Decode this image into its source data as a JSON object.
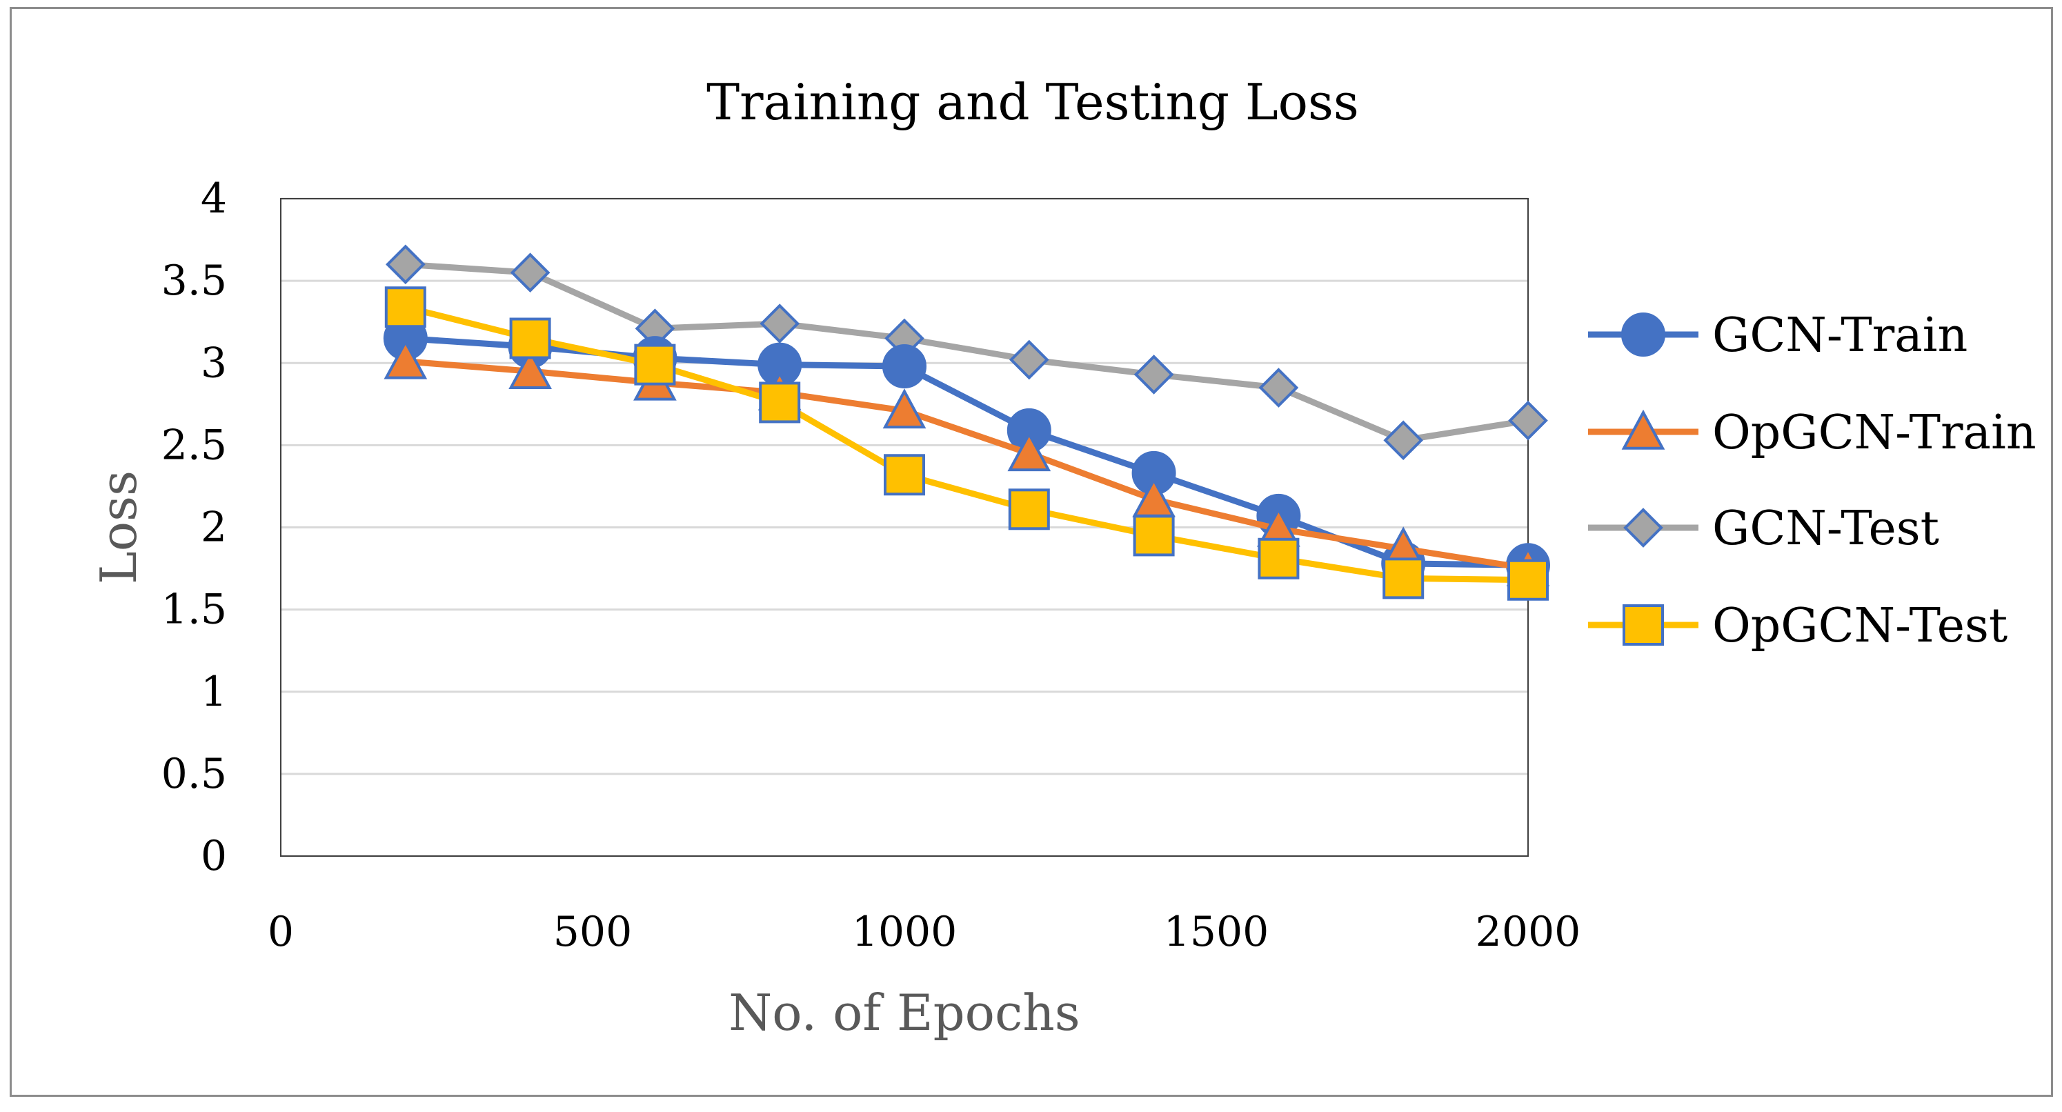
{
  "chart_data": {
    "type": "line",
    "title": "Training and Testing Loss",
    "xlabel": "No. of Epochs",
    "ylabel": "Loss",
    "xlim": [
      0,
      2000
    ],
    "ylim": [
      0,
      4
    ],
    "x_ticks": [
      0,
      500,
      1000,
      1500,
      2000
    ],
    "x_tick_labels": [
      "0",
      "500",
      "1000",
      "1500",
      "2000"
    ],
    "y_ticks": [
      0,
      0.5,
      1,
      1.5,
      2,
      2.5,
      3,
      3.5,
      4
    ],
    "y_tick_labels": [
      "0",
      "0.5",
      "1",
      "1.5",
      "2",
      "2.5",
      "3",
      "3.5",
      "4"
    ],
    "grid": "horizontal",
    "legend_position": "right",
    "x": [
      200,
      400,
      600,
      800,
      1000,
      1200,
      1400,
      1600,
      1800,
      2000
    ],
    "series": [
      {
        "name": "GCN-Train",
        "color": "#4472c4",
        "marker": "circle",
        "values": [
          3.15,
          3.1,
          3.03,
          2.99,
          2.98,
          2.59,
          2.33,
          2.07,
          1.78,
          1.77
        ]
      },
      {
        "name": "OpGCN-Train",
        "color": "#ed7d31",
        "marker": "triangle",
        "values": [
          3.01,
          2.95,
          2.88,
          2.82,
          2.71,
          2.45,
          2.17,
          1.99,
          1.87,
          1.75
        ]
      },
      {
        "name": "GCN-Test",
        "color": "#a5a5a5",
        "marker": "diamond",
        "values": [
          3.6,
          3.55,
          3.21,
          3.24,
          3.15,
          3.02,
          2.93,
          2.85,
          2.53,
          2.65
        ]
      },
      {
        "name": "OpGCN-Test",
        "color": "#ffc000",
        "marker": "square",
        "values": [
          3.34,
          3.15,
          2.99,
          2.76,
          2.32,
          2.11,
          1.95,
          1.81,
          1.69,
          1.68
        ]
      }
    ]
  }
}
